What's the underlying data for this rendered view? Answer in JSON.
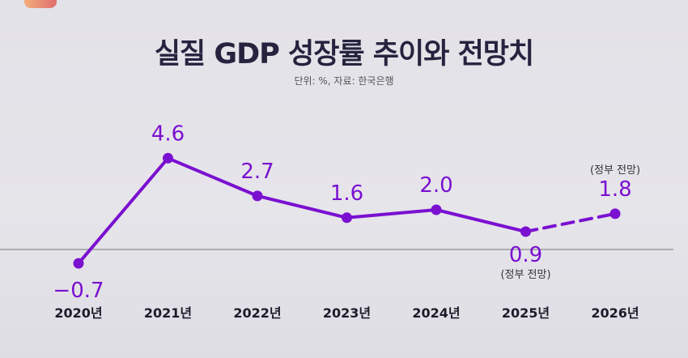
{
  "chart_data": {
    "type": "line",
    "title": "실질 GDP 성장률 추이와 전망치",
    "subtitle": "단위: %, 자료: 한국은행",
    "categories": [
      "2020년",
      "2021년",
      "2022년",
      "2023년",
      "2024년",
      "2025년",
      "2026년"
    ],
    "values": [
      -0.7,
      4.6,
      2.7,
      1.6,
      2.0,
      0.9,
      1.8
    ],
    "value_labels": [
      "−0.7",
      "4.6",
      "2.7",
      "1.6",
      "2.0",
      "0.9",
      "1.8"
    ],
    "forecast_from_index": 5,
    "annotations": [
      {
        "index": 5,
        "text": "(정부 전망)",
        "position": "below"
      },
      {
        "index": 6,
        "text": "(정부 전망)",
        "position": "above"
      }
    ],
    "xlabel": "",
    "ylabel": "",
    "ylim": [
      -0.7,
      4.6
    ],
    "grid": false,
    "baseline": 0,
    "color": "#7a10d0"
  }
}
